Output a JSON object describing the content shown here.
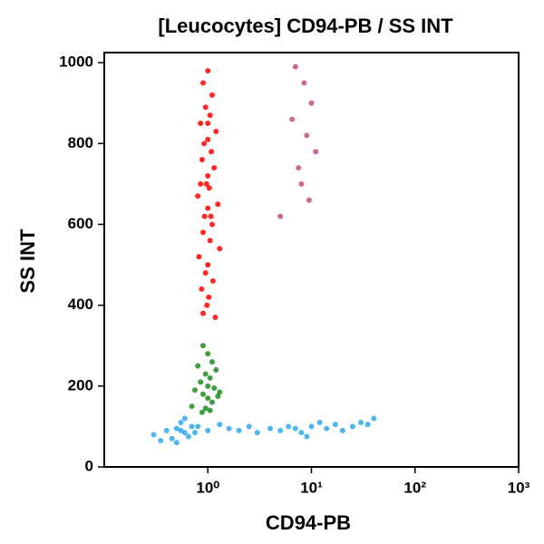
{
  "chart_data": {
    "type": "scatter",
    "title": "[Leucocytes] CD94-PB / SS INT",
    "x_label": "CD94-PB",
    "y_label": "SS INT",
    "x_scale": "log",
    "xlim": [
      0.1,
      1000
    ],
    "ylim": [
      0,
      1025
    ],
    "xticks": [
      {
        "value": 1,
        "label": "10⁰"
      },
      {
        "value": 10,
        "label": "10¹"
      },
      {
        "value": 100,
        "label": "10²"
      },
      {
        "value": 1000,
        "label": "10³"
      }
    ],
    "yticks": [
      0,
      200,
      400,
      600,
      800,
      1000
    ],
    "series": [
      {
        "color": "#c8506e",
        "x": [
          7,
          8.5,
          10,
          6.5,
          9,
          11,
          7.5,
          8,
          5,
          9.5
        ],
        "values": [
          990,
          950,
          900,
          860,
          820,
          780,
          740,
          700,
          620,
          660
        ]
      },
      {
        "color": "#30a8ec",
        "x": [
          0.3,
          0.4,
          0.5,
          0.6,
          0.7,
          0.45,
          0.55,
          0.65,
          0.5,
          0.6,
          0.8,
          1.0,
          1.3,
          1.6,
          2,
          2.5,
          3,
          4,
          5,
          6,
          7,
          8,
          10,
          12,
          14,
          17,
          20,
          25,
          30,
          35,
          40,
          0.35,
          0.55,
          0.75,
          9
        ],
        "values": [
          80,
          90,
          95,
          85,
          100,
          70,
          110,
          75,
          60,
          120,
          100,
          90,
          105,
          95,
          90,
          100,
          85,
          95,
          90,
          100,
          95,
          85,
          100,
          110,
          95,
          105,
          90,
          100,
          110,
          105,
          120,
          65,
          90,
          85,
          75
        ]
      },
      {
        "color": "#1e8c1e",
        "x": [
          0.9,
          1.0,
          1.1,
          0.8,
          1.2,
          0.95,
          1.05,
          0.85,
          1.0,
          1.15,
          0.75,
          1.3,
          0.9,
          1.0,
          1.1,
          0.7,
          1.25,
          0.95,
          1.05,
          0.88
        ],
        "values": [
          300,
          280,
          260,
          250,
          240,
          230,
          220,
          210,
          200,
          195,
          190,
          185,
          180,
          170,
          160,
          150,
          175,
          145,
          140,
          135
        ]
      },
      {
        "color": "#ff0000",
        "x": [
          1.0,
          0.9,
          1.1,
          0.95,
          1.05,
          0.85,
          1.2,
          1.0,
          0.92,
          1.08,
          0.88,
          1.15,
          1.0,
          0.97,
          1.03,
          0.8,
          1.25,
          1.0,
          0.93,
          1.1,
          0.9,
          1.05,
          1.3,
          0.82,
          1.0,
          0.95,
          1.12,
          0.87,
          1.02,
          0.98,
          0.9,
          1.18,
          1.0,
          0.85,
          1.07
        ],
        "values": [
          980,
          950,
          920,
          890,
          870,
          850,
          830,
          810,
          800,
          780,
          760,
          740,
          720,
          700,
          690,
          670,
          650,
          640,
          620,
          600,
          580,
          560,
          540,
          520,
          500,
          480,
          460,
          440,
          420,
          400,
          380,
          370,
          850,
          700,
          620
        ]
      }
    ]
  }
}
